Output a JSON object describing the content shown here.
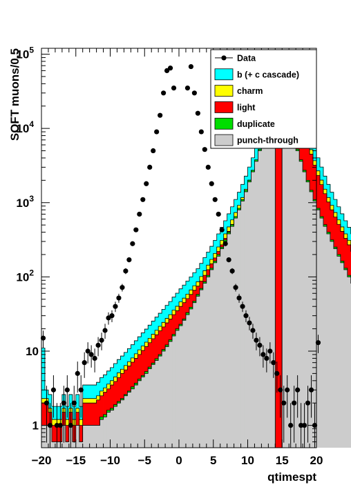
{
  "chart_data": {
    "type": "bar",
    "subtype": "stacked-histogram",
    "title": "",
    "xlabel": "qtimespt",
    "ylabel": "SOFT muons/0.5",
    "xlim": [
      -20,
      20
    ],
    "ylim": [
      0.5,
      120000
    ],
    "yscale": "log",
    "bin_width": 0.5,
    "grid": false,
    "legend_position": "top-right",
    "x_ticks": [
      -20,
      -15,
      -10,
      -5,
      0,
      5,
      10,
      15,
      20
    ],
    "x_tick_labels": [
      "−20",
      "−15",
      "−10",
      "−5",
      "0",
      "5",
      "10",
      "15",
      "20"
    ],
    "y_ticks": [
      1,
      10,
      100,
      1000,
      10000,
      100000
    ],
    "y_tick_labels": [
      {
        "base": "1",
        "exp": ""
      },
      {
        "base": "10",
        "exp": ""
      },
      {
        "base": "10",
        "exp": "2"
      },
      {
        "base": "10",
        "exp": "3"
      },
      {
        "base": "10",
        "exp": "4"
      },
      {
        "base": "10",
        "exp": "5"
      }
    ],
    "series": [
      {
        "name": "punch-through",
        "color": "#cccccc",
        "kind": "fill",
        "values": [
          1,
          1,
          1,
          0.6,
          0.6,
          0.6,
          1,
          0.6,
          1,
          0.6,
          1,
          0.6,
          1,
          1,
          1,
          1,
          1,
          1.2,
          1.3,
          1.5,
          1.6,
          1.8,
          2,
          2.2,
          2.5,
          2.8,
          3.1,
          3.5,
          4,
          4.5,
          5,
          5.8,
          6.6,
          7.5,
          8.6,
          10,
          11.5,
          13.5,
          16,
          19,
          22,
          26,
          31,
          37,
          45,
          55,
          67,
          82,
          100,
          125,
          155,
          190,
          240,
          300,
          380,
          480,
          620,
          800,
          1050,
          1400,
          1900,
          2600,
          3600,
          5000,
          7500,
          11000,
          17000,
          25000,
          0,
          0,
          25000,
          17000,
          11000,
          7500,
          5000,
          3600,
          2600,
          1900,
          1400,
          1050,
          800,
          620,
          480,
          380,
          300,
          240,
          190,
          155,
          125,
          100,
          82,
          67,
          55,
          45,
          37,
          31,
          26,
          22,
          19,
          16,
          13.5,
          11.5,
          10,
          8.6,
          7.5,
          6.6,
          5.8,
          5,
          4.5,
          4,
          3.5,
          3.1,
          2.8,
          2.5,
          2.2,
          2,
          1.8,
          1.6,
          1.5,
          1.3,
          1.2,
          1,
          1,
          1,
          0.6,
          1,
          0.6,
          1,
          0.6,
          1,
          0.6,
          1,
          1,
          3
        ]
      },
      {
        "name": "duplicate",
        "color": "#00dd00",
        "kind": "fill",
        "values": [
          1,
          1,
          1,
          0.6,
          0.6,
          0.6,
          1,
          0.6,
          1,
          0.6,
          1,
          0.6,
          1,
          1,
          1,
          1,
          1,
          1.3,
          1.4,
          1.6,
          1.7,
          1.9,
          2.1,
          2.3,
          2.6,
          2.9,
          3.3,
          3.7,
          4.2,
          4.7,
          5.3,
          6.1,
          6.9,
          7.9,
          9,
          10.5,
          12.1,
          14.2,
          16.8,
          20,
          23,
          27,
          33,
          39,
          47,
          58,
          70,
          86,
          105,
          131,
          163,
          200,
          252,
          315,
          400,
          505,
          650,
          840,
          1100,
          1470,
          2000,
          2730,
          3780,
          5250,
          7900,
          11600,
          17900,
          26300,
          0,
          0,
          26300,
          17900,
          11600,
          7900,
          5250,
          3780,
          2730,
          2000,
          1470,
          1100,
          840,
          650,
          505,
          400,
          315,
          252,
          200,
          163,
          131,
          105,
          86,
          70,
          58,
          47,
          39,
          33,
          27,
          23,
          20,
          16.8,
          14.2,
          12.1,
          10.5,
          9,
          7.9,
          6.9,
          6.1,
          5.3,
          4.7,
          4.2,
          3.7,
          3.3,
          2.9,
          2.6,
          2.3,
          2.1,
          1.9,
          1.7,
          1.6,
          1.4,
          1.3,
          1,
          1,
          1,
          0.6,
          1,
          0.6,
          1,
          0.6,
          1,
          0.6,
          1,
          1,
          3.2
        ]
      },
      {
        "name": "light",
        "color": "#ff0000",
        "kind": "fill",
        "values": [
          2,
          2,
          1.5,
          1,
          1,
          1,
          1.5,
          1,
          1.5,
          1,
          1.5,
          1,
          2,
          2,
          2,
          2,
          2.2,
          2.5,
          2.8,
          3.1,
          3.5,
          3.9,
          4.4,
          5,
          5.6,
          6.3,
          7.1,
          8,
          9,
          10.2,
          11.5,
          13,
          14.7,
          16.6,
          18.8,
          21.2,
          24,
          27,
          31,
          35,
          40,
          45,
          51,
          58,
          66,
          75,
          88,
          105,
          125,
          150,
          180,
          220,
          270,
          330,
          410,
          510,
          640,
          800,
          1020,
          1320,
          1750,
          2330,
          3200,
          4500,
          6500,
          9800,
          15300,
          23000,
          38000,
          56000,
          0,
          0,
          56000,
          38000,
          23000,
          15300,
          9800,
          6500,
          4500,
          3200,
          2330,
          1750,
          1320,
          1020,
          800,
          640,
          510,
          410,
          330,
          270,
          220,
          180,
          150,
          125,
          105,
          88,
          75,
          66,
          58,
          51,
          45,
          40,
          35,
          31,
          27,
          24,
          21.2,
          18.8,
          16.6,
          14.7,
          13,
          11.5,
          10.2,
          9,
          8,
          7.1,
          6.3,
          5.6,
          5,
          4.4,
          3.9,
          3.5,
          3.1,
          2.8,
          2.5,
          2.2,
          2,
          2,
          2,
          1.5,
          1.5,
          1,
          1.5,
          1,
          1.5,
          1,
          1.5,
          2,
          4
        ]
      },
      {
        "name": "charm",
        "color": "#ffff00",
        "kind": "fill",
        "values": [
          2.3,
          2.3,
          1.7,
          1.2,
          1.2,
          1.2,
          1.7,
          1.2,
          1.7,
          1.2,
          1.7,
          1.2,
          2.3,
          2.3,
          2.3,
          2.3,
          2.5,
          2.9,
          3.2,
          3.6,
          4,
          4.5,
          5.1,
          5.7,
          6.4,
          7.2,
          8.1,
          9.2,
          10.4,
          11.7,
          13.2,
          14.9,
          16.9,
          19.1,
          21.6,
          24.4,
          27.6,
          31,
          35.6,
          40.2,
          46,
          51.7,
          58.6,
          66.7,
          75.9,
          86,
          101,
          121,
          144,
          172,
          207,
          253,
          310,
          380,
          471,
          586,
          736,
          920,
          1173,
          1518,
          2012,
          2680,
          3680,
          5175,
          7475,
          11270,
          17595,
          26450,
          43700,
          64400,
          0,
          0,
          64400,
          43700,
          26450,
          17595,
          11270,
          7475,
          5175,
          3680,
          2680,
          2012,
          1518,
          1173,
          920,
          736,
          586,
          471,
          380,
          310,
          253,
          207,
          172,
          144,
          121,
          101,
          86,
          75.9,
          66.7,
          58.6,
          51.7,
          46,
          40.2,
          35.6,
          31,
          27.6,
          24.4,
          21.6,
          19.1,
          16.9,
          14.9,
          13.2,
          11.7,
          10.4,
          9.2,
          8.1,
          7.2,
          6.4,
          5.7,
          5.1,
          4.5,
          4,
          3.6,
          3.2,
          2.9,
          2.5,
          2.3,
          2.3,
          2.3,
          1.7,
          1.7,
          1.2,
          1.7,
          1.2,
          1.7,
          1.2,
          1.7,
          2.3,
          4.6
        ]
      },
      {
        "name": "b (+ c cascade)",
        "color": "#00ffff",
        "kind": "fill",
        "values": [
          11,
          3,
          2.6,
          1.8,
          1.8,
          1.8,
          2.6,
          1.8,
          2.6,
          1.8,
          2.6,
          1.8,
          3.5,
          3.5,
          3.5,
          3.5,
          3.8,
          4.4,
          4.8,
          5.4,
          6,
          6.8,
          7.7,
          8.6,
          9.6,
          10.8,
          12.2,
          13.8,
          15.6,
          17.6,
          19.8,
          22.4,
          25.4,
          28.7,
          32.4,
          36.6,
          41.4,
          46.5,
          53.4,
          60.3,
          69,
          77.6,
          87.9,
          100,
          114,
          129,
          152,
          182,
          216,
          258,
          311,
          380,
          465,
          570,
          707,
          879,
          1104,
          1380,
          1760,
          2277,
          3018,
          4020,
          5520,
          7763,
          11213,
          16905,
          26393,
          39675,
          60000,
          66000,
          0,
          0,
          66000,
          60000,
          39675,
          26393,
          16905,
          11213,
          7763,
          5520,
          4020,
          3018,
          2277,
          1760,
          1380,
          1104,
          879,
          707,
          570,
          465,
          380,
          311,
          258,
          216,
          182,
          152,
          129,
          114,
          100,
          87.9,
          77.6,
          69,
          60.3,
          53.4,
          46.5,
          41.4,
          36.6,
          32.4,
          28.7,
          25.4,
          22.4,
          19.8,
          17.6,
          15.6,
          13.8,
          12.2,
          10.8,
          9.6,
          8.6,
          7.7,
          6.8,
          6,
          5.4,
          4.8,
          4.4,
          3.8,
          3.5,
          3.5,
          3.5,
          2.6,
          2.6,
          1.8,
          2.6,
          1.8,
          2.6,
          1.8,
          2.6,
          3.5,
          7
        ]
      },
      {
        "name": "Data",
        "color": "#000000",
        "kind": "points",
        "x": [
          -20,
          -19.5,
          -19,
          -18.5,
          -18,
          -17.5,
          -17,
          -16.5,
          -16,
          -15.5,
          -15,
          -14.5,
          -14,
          -13.5,
          -13,
          -12.5,
          -12,
          -11.5,
          -11,
          -10.5,
          -10,
          -9.5,
          -9,
          -8.5,
          -8,
          -7.5,
          -7,
          -6.5,
          -6,
          -5.5,
          -5,
          -4.5,
          -4,
          -3.5,
          -3,
          -2.5,
          -2,
          -1.5,
          -1,
          1,
          1.5,
          2,
          2.5,
          3,
          3.5,
          4,
          4.5,
          5,
          5.5,
          6,
          6.5,
          7,
          7.5,
          8,
          8.5,
          9,
          9.5,
          10,
          10.5,
          11,
          11.5,
          12,
          12.5,
          13,
          13.5,
          14,
          14.5,
          15,
          15.5,
          16,
          16.5,
          17,
          17.5,
          18,
          18.5,
          19,
          19.5,
          20
        ],
        "y": [
          15,
          2,
          1,
          3,
          1,
          1,
          2,
          3,
          1,
          2,
          5,
          3,
          7,
          10,
          9,
          8,
          12,
          14,
          19,
          28,
          30,
          40,
          52,
          72,
          120,
          170,
          280,
          430,
          700,
          1100,
          1800,
          3000,
          5000,
          9000,
          15000,
          30000,
          60000,
          65000,
          35000,
          35000,
          68000,
          30000,
          16000,
          9000,
          5200,
          3000,
          1800,
          1100,
          700,
          430,
          280,
          170,
          120,
          72,
          52,
          40,
          30,
          24,
          19,
          14,
          12,
          9,
          8,
          10,
          7,
          5,
          3,
          2,
          3,
          1,
          2,
          3,
          1,
          1,
          2,
          3,
          1,
          13
        ]
      }
    ]
  }
}
